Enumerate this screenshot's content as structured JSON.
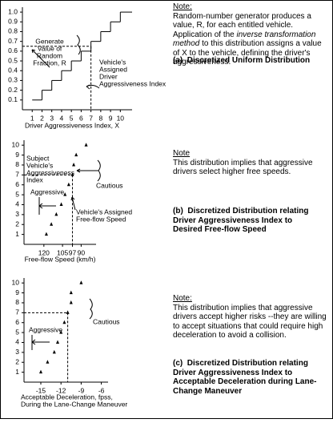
{
  "chart_data": [
    {
      "type": "step",
      "xlabel": [
        "Driver Aggressiveness Index, X"
      ],
      "x": [
        1,
        2,
        3,
        4,
        5,
        6,
        7,
        8,
        9,
        10
      ],
      "values": [
        0.1,
        0.2,
        0.3,
        0.4,
        0.5,
        0.6,
        0.7,
        0.8,
        0.9,
        1.0
      ],
      "xlim": [
        0,
        11.2
      ],
      "ylim": [
        0,
        1.05
      ],
      "xticks": [
        1,
        2,
        3,
        4,
        5,
        6,
        7,
        8,
        9,
        10
      ],
      "yticks": [
        0.1,
        0.2,
        0.3,
        0.4,
        0.5,
        0.6,
        0.7,
        0.8,
        0.9,
        {
          "value": 1,
          "label": "1.0"
        }
      ],
      "color": "#000000",
      "guide": {
        "x": 7,
        "y": 0.65
      },
      "annotations": [
        {
          "lines": [
            "Generate",
            "Value of",
            "Random",
            "Fraction, R"
          ]
        },
        {
          "lines": [
            "Vehicle's",
            "Assigned",
            "Driver",
            "Aggressiveness Index"
          ]
        }
      ]
    },
    {
      "type": "scatter",
      "xlabel": [
        "Free-flow Speed (km/h)"
      ],
      "x": [
        118,
        114,
        110,
        106,
        103,
        100,
        97,
        96,
        94,
        86
      ],
      "values": [
        1,
        2,
        3,
        4,
        5,
        6,
        7,
        8,
        9,
        10
      ],
      "xlim": [
        136,
        78
      ],
      "ylim": [
        0,
        10.5
      ],
      "xticks": [
        120,
        105,
        97,
        90
      ],
      "yticks": [
        1,
        2,
        3,
        4,
        5,
        6,
        7,
        8,
        9,
        10
      ],
      "color": "#000000",
      "guide": {
        "x": 97,
        "y": 7
      },
      "annotations": [
        {
          "lines": [
            "Subject",
            "Vehicle's",
            "Aggressiveness",
            "Index"
          ]
        },
        {
          "lines": [
            "Aggressive"
          ]
        },
        {
          "lines": [
            "Cautious"
          ]
        },
        {
          "lines": [
            "Vehicle's Assigned",
            "Free-flow Speed"
          ]
        }
      ]
    },
    {
      "type": "scatter",
      "xlabel": [
        "Acceptable Deceleration, fpss,",
        "During the Lane-Change Maneuver"
      ],
      "x": [
        -15,
        -14,
        -13,
        -12.5,
        -12,
        -11.5,
        -11,
        -10.5,
        -10.5,
        -9
      ],
      "values": [
        1,
        2,
        3,
        4,
        5,
        6,
        7,
        8,
        9,
        10
      ],
      "xlim": [
        -17.5,
        -5
      ],
      "ylim": [
        0,
        10.5
      ],
      "xticks": [
        -15,
        -12,
        -9,
        -6
      ],
      "yticks": [
        1,
        2,
        3,
        4,
        5,
        6,
        7,
        8,
        9,
        10
      ],
      "color": "#000000",
      "guide": {
        "x": -11,
        "y": 7
      },
      "annotations": [
        {
          "lines": [
            "Aggressive"
          ]
        },
        {
          "lines": [
            "Cautious"
          ]
        }
      ]
    }
  ],
  "notes": [
    {
      "heading": "Note:",
      "before": "Random-number generator produces a value, R, for each entitled vehicle.  Application of the",
      "italic": "inverse transformation method",
      "after": "to this distribution assigns a value of X to the vehicle, defining the driver's aggressiveness."
    },
    {
      "heading": "Note",
      "before": "This distribution implies that aggressive drivers select higher free speeds."
    },
    {
      "heading": "Note:",
      "before": "This distribution implies that aggressive drivers accept higher risks --they are willing to accept situations that could require high deceleration to avoid a collision."
    }
  ],
  "captions": [
    {
      "label": "(a)",
      "text": "Discretized Uniform Distribution"
    },
    {
      "label": "(b)",
      "text": "Discretized Distribution relating Driver Aggressiveness Index to Desired Free-flow Speed"
    },
    {
      "label": "(c)",
      "text": "Discretized Distribution relating Driver Aggressiveness Index to Acceptable Deceleration during Lane-Change Maneuver"
    }
  ]
}
